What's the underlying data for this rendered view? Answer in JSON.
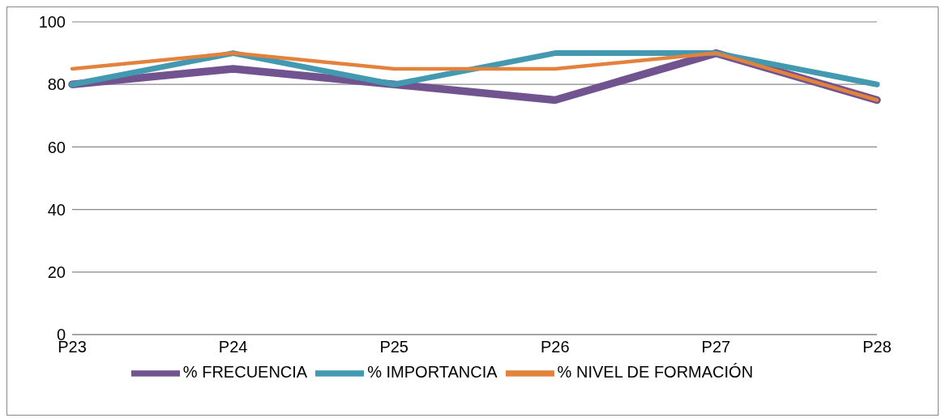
{
  "chart_data": {
    "type": "line",
    "categories": [
      "P23",
      "P24",
      "P25",
      "P26",
      "P27",
      "P28"
    ],
    "series": [
      {
        "name": "% FRECUENCIA",
        "color": "#71548f",
        "values": [
          80,
          85,
          80,
          75,
          90,
          75
        ]
      },
      {
        "name": "% IMPORTANCIA",
        "color": "#4299b0",
        "values": [
          80,
          90,
          80,
          90,
          90,
          80
        ]
      },
      {
        "name": "% NIVEL DE FORMACIÓN",
        "color": "#e2823c",
        "values": [
          85,
          90,
          85,
          85,
          90,
          75
        ]
      }
    ],
    "ylim": [
      0,
      100
    ],
    "yticks": [
      0,
      20,
      40,
      60,
      80,
      100
    ],
    "grid": "y",
    "legend": "bottom",
    "marker": "none",
    "line_style": "solid"
  }
}
